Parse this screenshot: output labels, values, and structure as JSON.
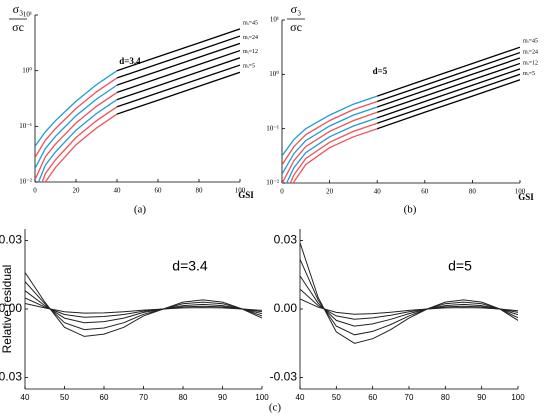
{
  "chart_data": [
    {
      "type": "line",
      "title": "d=3.4",
      "caption": "(a)",
      "xlabel": "GSI",
      "ylabel_numerator": "σ₃",
      "ylabel_denominator": "σc",
      "ylog": true,
      "x": [
        0,
        5,
        10,
        20,
        30,
        40,
        60,
        80,
        100
      ],
      "xlim": [
        0,
        100
      ],
      "xticks": [
        0,
        20,
        40,
        60,
        80,
        100
      ],
      "ylim": [
        0.01,
        10
      ],
      "yticks": [
        {
          "value": 0.01,
          "label": "10⁻²"
        },
        {
          "value": 0.1,
          "label": "10⁻¹"
        },
        {
          "value": 1,
          "label": "10⁰"
        },
        {
          "value": 10,
          "label": "10¹"
        }
      ],
      "tail_color": "#000000",
      "tail_from_x": 40,
      "series": [
        {
          "name": "mᵢ=45",
          "color": "#1e9bd7",
          "values": [
            0.0437,
            0.0794,
            0.126,
            0.282,
            0.562,
            1,
            1.78,
            3.16,
            5.62
          ]
        },
        {
          "color": "#f0505a",
          "values": [
            0.0275,
            0.0562,
            0.0912,
            0.209,
            0.417,
            0.741,
            1.32,
            2.34,
            4.17
          ]
        },
        {
          "name": "mᵢ=24",
          "color": "#1e9bd7",
          "values": [
            0.0174,
            0.0398,
            0.0661,
            0.155,
            0.309,
            0.55,
            0.977,
            1.74,
            3.09
          ]
        },
        {
          "color": "#f0505a",
          "values": [
            0.011,
            0.0282,
            0.0479,
            0.115,
            0.229,
            0.407,
            0.724,
            1.29,
            2.29
          ]
        },
        {
          "name": "mᵢ=12",
          "color": "#1e9bd7",
          "values": [
            0.0069,
            0.02,
            0.0347,
            0.0851,
            0.17,
            0.302,
            0.537,
            0.955,
            1.7
          ]
        },
        {
          "color": "#f0505a",
          "values": [
            0.0044,
            0.0141,
            0.0251,
            0.0631,
            0.126,
            0.224,
            0.398,
            0.708,
            1.26
          ]
        },
        {
          "name": "mᵢ=5",
          "color": "#f0505a",
          "values": [
            0.0028,
            0.01,
            0.0182,
            0.0468,
            0.0933,
            0.166,
            0.295,
            0.525,
            0.933
          ]
        }
      ]
    },
    {
      "type": "line",
      "title": "d=5",
      "caption": "(b)",
      "xlabel": "GSI",
      "ylabel_numerator": "σ₃",
      "ylabel_denominator": "σc",
      "ylog": true,
      "x": [
        0,
        5,
        10,
        20,
        30,
        40,
        60,
        80,
        100
      ],
      "xlim": [
        0,
        100
      ],
      "xticks": [
        0,
        20,
        40,
        60,
        80,
        100
      ],
      "ylim": [
        0.01,
        10
      ],
      "yticks": [
        {
          "value": 0.01,
          "label": "10⁻²"
        },
        {
          "value": 0.1,
          "label": "10⁻¹"
        },
        {
          "value": 1,
          "label": "10⁰"
        },
        {
          "value": 10,
          "label": "10¹"
        }
      ],
      "tail_color": "#000000",
      "tail_from_x": 40,
      "series": [
        {
          "name": "mᵢ=45",
          "color": "#1e9bd7",
          "values": [
            0.0316,
            0.0631,
            0.1,
            0.178,
            0.282,
            0.398,
            0.794,
            1.58,
            3.16
          ]
        },
        {
          "color": "#f0505a",
          "values": [
            0.0214,
            0.0468,
            0.0776,
            0.141,
            0.224,
            0.316,
            0.631,
            1.26,
            2.51
          ]
        },
        {
          "name": "mᵢ=24",
          "color": "#1e9bd7",
          "values": [
            0.0145,
            0.0347,
            0.0603,
            0.112,
            0.178,
            0.251,
            0.501,
            1,
            2
          ]
        },
        {
          "color": "#f0505a",
          "values": [
            0.0098,
            0.0257,
            0.0468,
            0.0891,
            0.141,
            0.2,
            0.398,
            0.794,
            1.58
          ]
        },
        {
          "name": "mᵢ=12",
          "color": "#1e9bd7",
          "values": [
            0.0066,
            0.0191,
            0.0363,
            0.0708,
            0.112,
            0.158,
            0.316,
            0.631,
            1.26
          ]
        },
        {
          "color": "#f0505a",
          "values": [
            0.0045,
            0.0141,
            0.0282,
            0.0562,
            0.0891,
            0.126,
            0.251,
            0.501,
            1
          ]
        },
        {
          "name": "mᵢ=5",
          "color": "#f0505a",
          "values": [
            0.003,
            0.0105,
            0.0219,
            0.0447,
            0.0708,
            0.1,
            0.2,
            0.398,
            0.794
          ]
        }
      ]
    },
    {
      "type": "line",
      "title": "d=3.4",
      "ylabel": "Relative residual",
      "x": [
        40,
        45,
        50,
        55,
        60,
        65,
        70,
        75,
        80,
        85,
        90,
        95,
        100
      ],
      "xlim": [
        40,
        100
      ],
      "xticks": [
        40,
        50,
        60,
        70,
        80,
        90,
        100
      ],
      "ylim": [
        -0.035,
        0.035
      ],
      "yticks": [
        {
          "value": -0.03,
          "label": "-0.03"
        },
        {
          "value": 0,
          "label": "0.00"
        },
        {
          "value": 0.03,
          "label": "0.03"
        }
      ],
      "series": [
        {
          "color": "#222222",
          "values": [
            0.016,
            0.003,
            -0.008,
            -0.012,
            -0.011,
            -0.008,
            -0.003,
            0,
            0.003,
            0.004,
            0.003,
            0,
            -0.004
          ]
        },
        {
          "color": "#222222",
          "values": [
            0.012,
            0.0023,
            -0.006,
            -0.009,
            -0.0083,
            -0.006,
            -0.0023,
            0,
            0.0023,
            0.003,
            0.0023,
            0,
            -0.003
          ]
        },
        {
          "color": "#222222",
          "values": [
            0.008,
            0.0015,
            -0.004,
            -0.006,
            -0.0055,
            -0.004,
            -0.0015,
            0,
            0.0015,
            0.002,
            0.0015,
            0,
            -0.002
          ]
        },
        {
          "color": "#222222",
          "values": [
            0.0048,
            0.0009,
            -0.0024,
            -0.0036,
            -0.0033,
            -0.0024,
            -0.0009,
            0,
            0.0009,
            0.0012,
            0.0009,
            0,
            -0.0012
          ]
        },
        {
          "color": "#222222",
          "values": [
            0.0024,
            0.0005,
            -0.0012,
            -0.0018,
            -0.0017,
            -0.0012,
            -0.0005,
            0,
            0.0005,
            0.0006,
            0.0005,
            0,
            -0.0006
          ]
        }
      ]
    },
    {
      "type": "line",
      "title": "d=5",
      "x": [
        40,
        45,
        50,
        55,
        60,
        65,
        70,
        75,
        80,
        85,
        90,
        95,
        100
      ],
      "xlim": [
        40,
        100
      ],
      "xticks": [
        40,
        50,
        60,
        70,
        80,
        90,
        100
      ],
      "ylim": [
        -0.035,
        0.035
      ],
      "yticks": [
        {
          "value": -0.03,
          "label": "-0.03"
        },
        {
          "value": 0,
          "label": "0.00"
        },
        {
          "value": 0.03,
          "label": "0.03"
        }
      ],
      "series": [
        {
          "color": "#222222",
          "values": [
            0.029,
            0.005,
            -0.01,
            -0.015,
            -0.013,
            -0.009,
            -0.004,
            0,
            0.003,
            0.004,
            0.003,
            0,
            -0.005
          ]
        },
        {
          "color": "#222222",
          "values": [
            0.0218,
            0.0038,
            -0.0075,
            -0.0113,
            -0.0098,
            -0.0068,
            -0.003,
            0,
            0.0023,
            0.003,
            0.0023,
            0,
            -0.0038
          ]
        },
        {
          "color": "#222222",
          "values": [
            0.0145,
            0.0025,
            -0.005,
            -0.0075,
            -0.0065,
            -0.0045,
            -0.002,
            0,
            0.0015,
            0.002,
            0.0015,
            0,
            -0.0025
          ]
        },
        {
          "color": "#222222",
          "values": [
            0.0087,
            0.0015,
            -0.003,
            -0.0045,
            -0.0039,
            -0.0027,
            -0.0012,
            0,
            0.0009,
            0.0012,
            0.0009,
            0,
            -0.0015
          ]
        },
        {
          "color": "#222222",
          "values": [
            0.0044,
            0.0008,
            -0.0015,
            -0.0023,
            -0.002,
            -0.0014,
            -0.0006,
            0,
            0.0005,
            0.0006,
            0.0005,
            0,
            -0.0008
          ]
        }
      ]
    }
  ],
  "figure_caption": "(c)"
}
